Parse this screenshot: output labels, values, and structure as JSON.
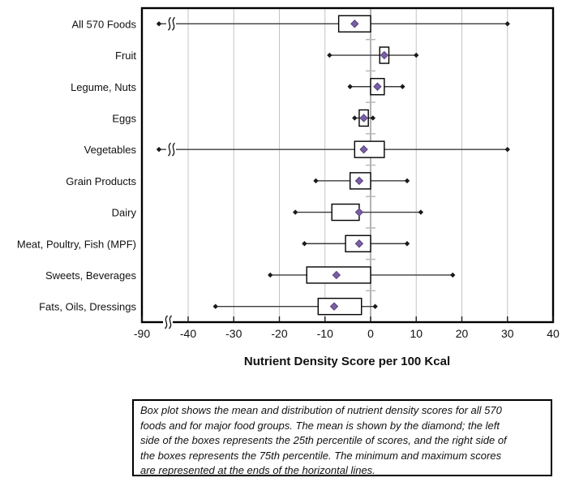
{
  "chart_data": {
    "type": "boxplot-horizontal",
    "xlabel": "Nutrient Density Score per 100 Kcal",
    "x_axis": {
      "ticks": [
        {
          "label": "-90",
          "value": -90
        },
        {
          "label": "-40",
          "value": -40
        },
        {
          "label": "-30",
          "value": -30
        },
        {
          "label": "-20",
          "value": -20
        },
        {
          "label": "-10",
          "value": -10
        },
        {
          "label": "0",
          "value": 0
        },
        {
          "label": "10",
          "value": 10
        },
        {
          "label": "20",
          "value": 20
        },
        {
          "label": "30",
          "value": 30
        },
        {
          "label": "40",
          "value": 40
        }
      ],
      "linear_range": [
        -40,
        40
      ],
      "axis_break_between": [
        -90,
        -40
      ],
      "grid": true
    },
    "groups": [
      {
        "label": "All 570 Foods",
        "min": -90,
        "q1": -7,
        "mean": -3.5,
        "q3": 0,
        "max": 30,
        "min_off_scale": true
      },
      {
        "label": "Fruit",
        "min": -9,
        "q1": 2,
        "mean": 3,
        "q3": 4,
        "max": 10,
        "min_off_scale": false
      },
      {
        "label": "Legume, Nuts",
        "min": -4.5,
        "q1": 0,
        "mean": 1.5,
        "q3": 3,
        "max": 7,
        "min_off_scale": false
      },
      {
        "label": "Eggs",
        "min": -3.5,
        "q1": -2.5,
        "mean": -1.5,
        "q3": -0.5,
        "max": 0.5,
        "min_off_scale": false
      },
      {
        "label": "Vegetables",
        "min": -90,
        "q1": -3.5,
        "mean": -1.5,
        "q3": 3,
        "max": 30,
        "min_off_scale": true
      },
      {
        "label": "Grain Products",
        "min": -12,
        "q1": -4.5,
        "mean": -2.5,
        "q3": 0,
        "max": 8,
        "min_off_scale": false
      },
      {
        "label": "Dairy",
        "min": -16.5,
        "q1": -8.5,
        "mean": -2.5,
        "q3": -2.5,
        "max": 11,
        "min_off_scale": false
      },
      {
        "label": "Meat, Poultry, Fish (MPF)",
        "min": -14.5,
        "q1": -5.5,
        "mean": -2.5,
        "q3": 0,
        "max": 8,
        "min_off_scale": false
      },
      {
        "label": "Sweets, Beverages",
        "min": -22,
        "q1": -14,
        "mean": -7.5,
        "q3": 0,
        "max": 18,
        "min_off_scale": false
      },
      {
        "label": "Fats, Oils, Dressings",
        "min": -34,
        "q1": -11.5,
        "mean": -8,
        "q3": -2,
        "max": 1,
        "min_off_scale": false
      }
    ],
    "legend": "none",
    "colors": {
      "mean_diamond": "#7B5FA6",
      "mean_diamond_stroke": "#55407A",
      "box_fill": "#FFFFFF",
      "box_stroke": "#000000",
      "whisker": "#3C3C3C",
      "whisker_end": "#1A1A1A",
      "gridline": "#C4C4C4",
      "zero_axis": "#999999",
      "category_tick": "#B8B8B8",
      "plot_border": "#000000"
    }
  },
  "caption": {
    "lines": [
      "Box plot shows the mean and distribution of nutrient density scores for all 570",
      "foods and for major food groups. The mean is shown by the diamond; the left",
      "side of the boxes represents the 25th percentile of scores, and the right side of",
      "the boxes represents the 75th percentile. The minimum and maximum scores",
      "are represented at the ends of the horizontal lines."
    ]
  }
}
